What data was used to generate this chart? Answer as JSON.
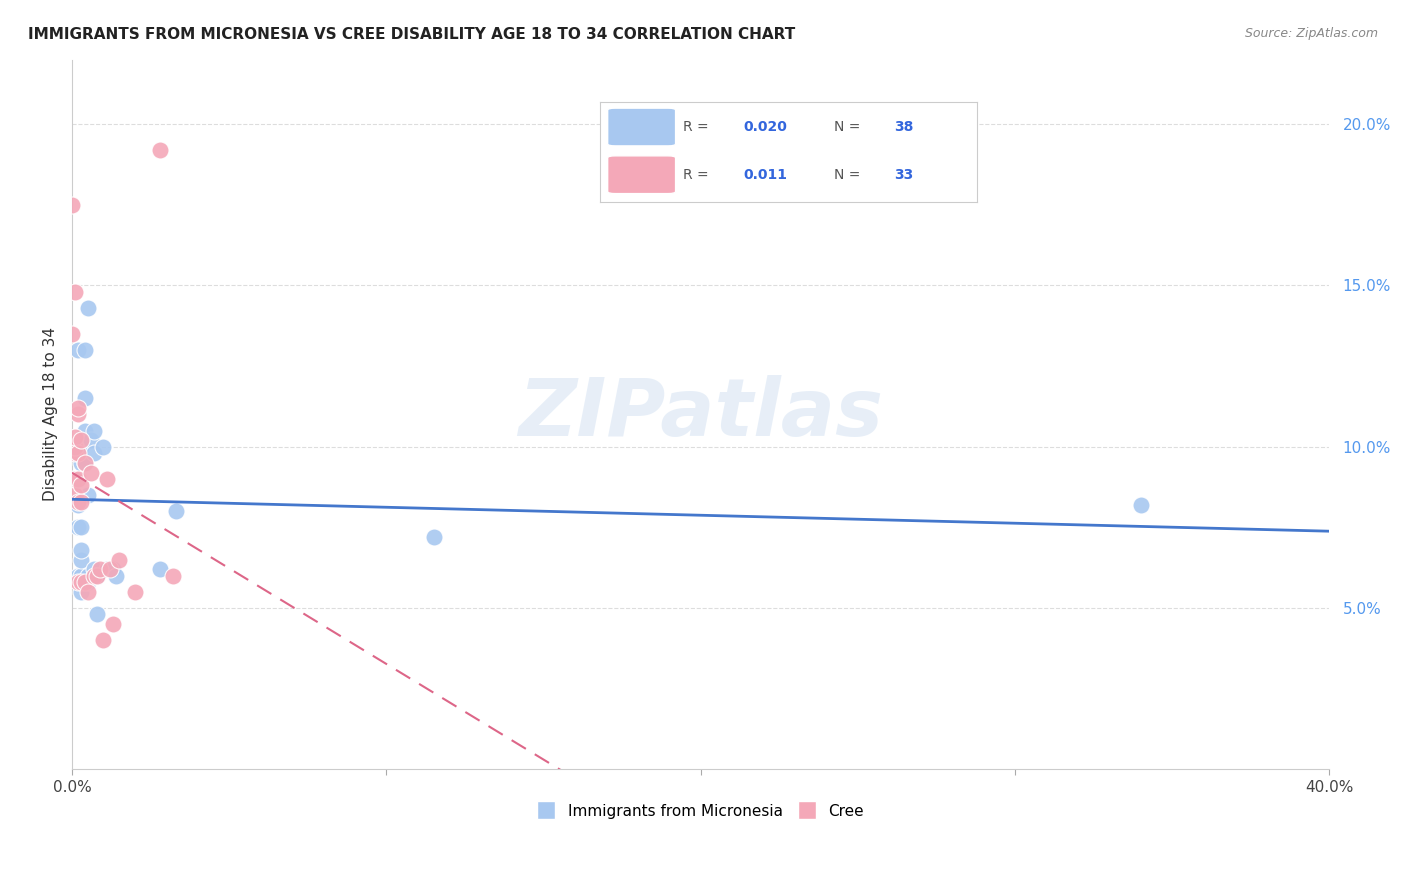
{
  "title": "IMMIGRANTS FROM MICRONESIA VS CREE DISABILITY AGE 18 TO 34 CORRELATION CHART",
  "source": "Source: ZipAtlas.com",
  "ylabel": "Disability Age 18 to 34",
  "xlim": [
    0.0,
    0.4
  ],
  "ylim": [
    0.0,
    0.22
  ],
  "grid_color": "#dddddd",
  "watermark_text": "ZIPatlas",
  "legend_R_blue": "0.020",
  "legend_N_blue": "38",
  "legend_R_pink": "0.011",
  "legend_N_pink": "33",
  "blue_color": "#a8c8f0",
  "pink_color": "#f4a8b8",
  "blue_line_color": "#4477cc",
  "pink_line_color": "#dd6688",
  "blue_scatter": [
    [
      0.0,
      0.09
    ],
    [
      0.001,
      0.09
    ],
    [
      0.001,
      0.083
    ],
    [
      0.001,
      0.1
    ],
    [
      0.002,
      0.082
    ],
    [
      0.002,
      0.075
    ],
    [
      0.002,
      0.06
    ],
    [
      0.002,
      0.09
    ],
    [
      0.002,
      0.13
    ],
    [
      0.003,
      0.075
    ],
    [
      0.003,
      0.06
    ],
    [
      0.003,
      0.1
    ],
    [
      0.003,
      0.095
    ],
    [
      0.003,
      0.065
    ],
    [
      0.003,
      0.055
    ],
    [
      0.003,
      0.068
    ],
    [
      0.004,
      0.13
    ],
    [
      0.004,
      0.115
    ],
    [
      0.004,
      0.105
    ],
    [
      0.004,
      0.095
    ],
    [
      0.005,
      0.143
    ],
    [
      0.005,
      0.085
    ],
    [
      0.005,
      0.058
    ],
    [
      0.005,
      0.06
    ],
    [
      0.006,
      0.102
    ],
    [
      0.007,
      0.105
    ],
    [
      0.007,
      0.098
    ],
    [
      0.007,
      0.062
    ],
    [
      0.008,
      0.06
    ],
    [
      0.008,
      0.048
    ],
    [
      0.01,
      0.1
    ],
    [
      0.011,
      0.062
    ],
    [
      0.013,
      0.062
    ],
    [
      0.014,
      0.06
    ],
    [
      0.033,
      0.08
    ],
    [
      0.028,
      0.062
    ],
    [
      0.115,
      0.072
    ],
    [
      0.34,
      0.082
    ]
  ],
  "pink_scatter": [
    [
      0.0,
      0.175
    ],
    [
      0.0,
      0.135
    ],
    [
      0.001,
      0.098
    ],
    [
      0.001,
      0.1
    ],
    [
      0.001,
      0.103
    ],
    [
      0.001,
      0.09
    ],
    [
      0.001,
      0.085
    ],
    [
      0.001,
      0.148
    ],
    [
      0.002,
      0.11
    ],
    [
      0.002,
      0.112
    ],
    [
      0.002,
      0.098
    ],
    [
      0.002,
      0.09
    ],
    [
      0.002,
      0.083
    ],
    [
      0.002,
      0.058
    ],
    [
      0.003,
      0.102
    ],
    [
      0.003,
      0.083
    ],
    [
      0.003,
      0.058
    ],
    [
      0.003,
      0.088
    ],
    [
      0.004,
      0.095
    ],
    [
      0.004,
      0.058
    ],
    [
      0.005,
      0.055
    ],
    [
      0.006,
      0.092
    ],
    [
      0.007,
      0.06
    ],
    [
      0.008,
      0.06
    ],
    [
      0.009,
      0.062
    ],
    [
      0.01,
      0.04
    ],
    [
      0.011,
      0.09
    ],
    [
      0.012,
      0.062
    ],
    [
      0.013,
      0.045
    ],
    [
      0.015,
      0.065
    ],
    [
      0.032,
      0.06
    ],
    [
      0.028,
      0.192
    ],
    [
      0.02,
      0.055
    ]
  ]
}
